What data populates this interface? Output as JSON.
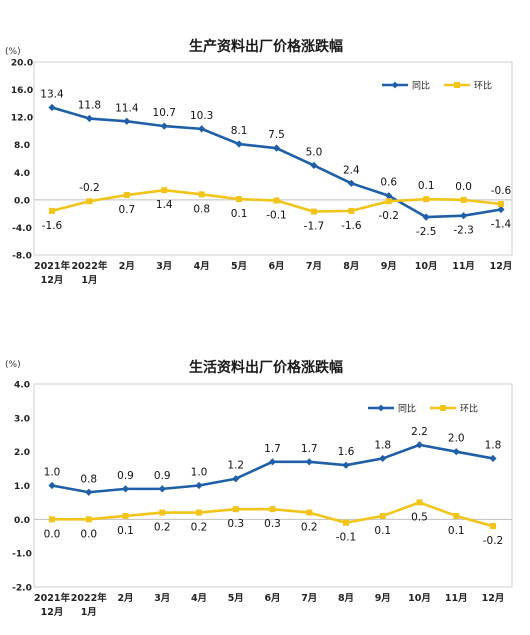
{
  "chart_data": [
    {
      "type": "line",
      "title": "生产资料出厂价格涨跌幅",
      "ylabel": "(%)",
      "xlabel": "",
      "ylim": [
        -8.0,
        20.0
      ],
      "yticks": [
        "20.0",
        "16.0",
        "12.0",
        "8.0",
        "4.0",
        "0.0",
        "-4.0",
        "-8.0"
      ],
      "ytick_values": [
        20,
        16,
        12,
        8,
        4,
        0,
        -4,
        -8
      ],
      "categories": [
        "2021年\n12月",
        "2022年\n1月",
        "2月",
        "3月",
        "4月",
        "5月",
        "6月",
        "7月",
        "8月",
        "9月",
        "10月",
        "11月",
        "12月"
      ],
      "legend_position": "top-right",
      "series": [
        {
          "name": "同比",
          "color": "#1f5fa8",
          "marker": "diamond",
          "values": [
            13.4,
            11.8,
            11.4,
            10.7,
            10.3,
            8.1,
            7.5,
            5.0,
            2.4,
            0.6,
            -2.5,
            -2.3,
            -1.4
          ],
          "labels": [
            "13.4",
            "11.8",
            "11.4",
            "10.7",
            "10.3",
            "8.1",
            "7.5",
            "5.0",
            "2.4",
            "0.6",
            "-2.5",
            "-2.3",
            "-1.4"
          ]
        },
        {
          "name": "环比",
          "color": "#f2c318",
          "marker": "square",
          "values": [
            -1.6,
            -0.2,
            0.7,
            1.4,
            0.8,
            0.1,
            -0.1,
            -1.7,
            -1.6,
            -0.2,
            0.1,
            0.0,
            -0.6
          ],
          "labels": [
            "-1.6",
            "-0.2",
            "0.7",
            "1.4",
            "0.8",
            "0.1",
            "-0.1",
            "-1.7",
            "-1.6",
            "-0.2",
            "0.1",
            "0.0",
            "-0.6"
          ]
        }
      ]
    },
    {
      "type": "line",
      "title": "生活资料出厂价格涨跌幅",
      "ylabel": "(%)",
      "xlabel": "",
      "ylim": [
        -2.0,
        4.0
      ],
      "yticks": [
        "4.0",
        "3.0",
        "2.0",
        "1.0",
        "0.0",
        "-1.0",
        "-2.0"
      ],
      "ytick_values": [
        4,
        3,
        2,
        1,
        0,
        -1,
        -2
      ],
      "categories": [
        "2021年\n12月",
        "2022年\n1月",
        "2月",
        "3月",
        "4月",
        "5月",
        "6月",
        "7月",
        "8月",
        "9月",
        "10月",
        "11月",
        "12月"
      ],
      "legend_position": "top-right",
      "series": [
        {
          "name": "同比",
          "color": "#1f5fa8",
          "marker": "diamond",
          "values": [
            1.0,
            0.8,
            0.9,
            0.9,
            1.0,
            1.2,
            1.7,
            1.7,
            1.6,
            1.8,
            2.2,
            2.0,
            1.8
          ],
          "labels": [
            "1.0",
            "0.8",
            "0.9",
            "0.9",
            "1.0",
            "1.2",
            "1.7",
            "1.7",
            "1.6",
            "1.8",
            "2.2",
            "2.0",
            "1.8"
          ]
        },
        {
          "name": "环比",
          "color": "#f2c318",
          "marker": "square",
          "values": [
            0.0,
            0.0,
            0.1,
            0.2,
            0.2,
            0.3,
            0.3,
            0.2,
            -0.1,
            0.1,
            0.5,
            0.1,
            -0.2
          ],
          "labels": [
            "0.0",
            "0.0",
            "0.1",
            "0.2",
            "0.2",
            "0.3",
            "0.3",
            "0.2",
            "-0.1",
            "0.1",
            "0.5",
            "0.1",
            "-0.2"
          ]
        }
      ]
    }
  ]
}
